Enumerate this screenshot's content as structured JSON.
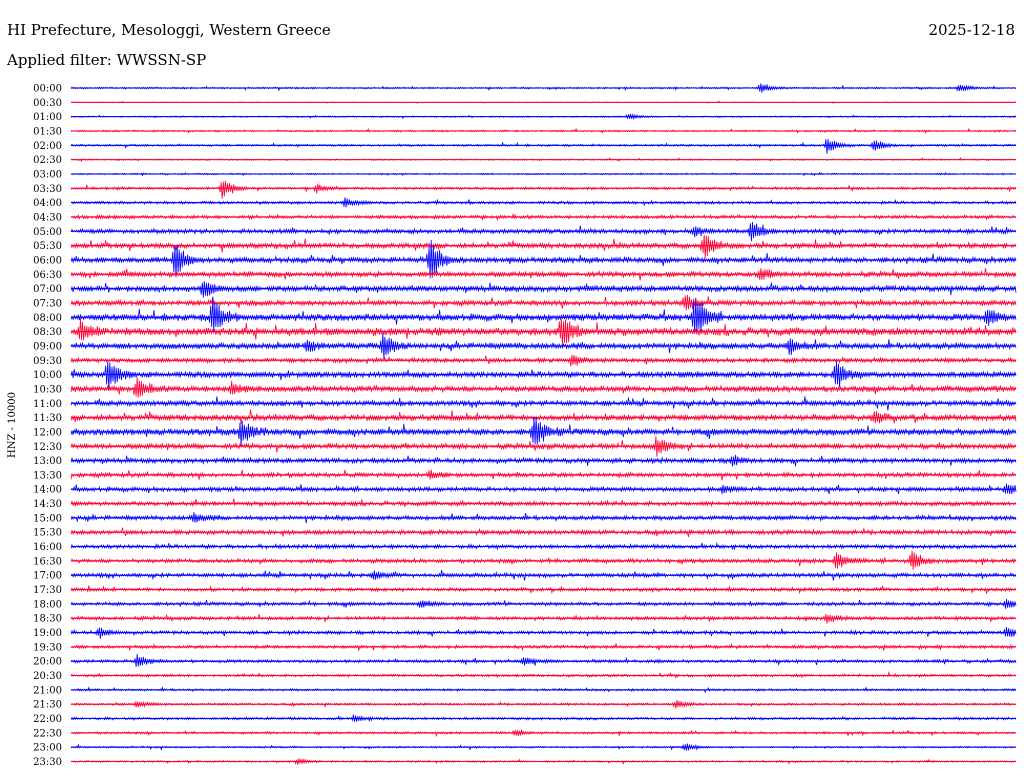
{
  "header": {
    "title": "HI Prefecture, Mesologgi, Western Greece",
    "date": "2025-12-18",
    "filter": "Applied filter: WWSSN-SP"
  },
  "chart_data": {
    "type": "line",
    "ylabel": "HNZ - 10000",
    "colors": [
      "#0000ff",
      "#ff0033"
    ],
    "rows": [
      "00:00",
      "00:30",
      "01:00",
      "01:30",
      "02:00",
      "02:30",
      "03:00",
      "03:30",
      "04:00",
      "04:30",
      "05:00",
      "05:30",
      "06:00",
      "06:30",
      "07:00",
      "07:30",
      "08:00",
      "08:30",
      "09:00",
      "09:30",
      "10:00",
      "10:30",
      "11:00",
      "11:30",
      "12:00",
      "12:30",
      "13:00",
      "13:30",
      "14:00",
      "14:30",
      "15:00",
      "15:30",
      "16:00",
      "16:30",
      "17:00",
      "17:30",
      "18:00",
      "18:30",
      "19:00",
      "19:30",
      "20:00",
      "20:30",
      "21:00",
      "21:30",
      "22:00",
      "22:30",
      "23:00",
      "23:30"
    ],
    "noise_levels": [
      1.0,
      0.5,
      0.8,
      1.0,
      1.2,
      0.8,
      0.9,
      1.5,
      1.6,
      2.0,
      2.5,
      3.0,
      3.2,
      3.0,
      3.5,
      3.0,
      4.0,
      4.5,
      3.5,
      2.5,
      3.5,
      3.5,
      3.0,
      3.5,
      3.8,
      3.0,
      2.8,
      2.5,
      2.5,
      2.5,
      2.5,
      2.5,
      2.3,
      2.3,
      2.3,
      2.0,
      2.0,
      2.0,
      2.0,
      1.8,
      1.8,
      1.5,
      1.3,
      1.3,
      1.5,
      1.3,
      1.0,
      1.0
    ],
    "events": [
      {
        "row": "00:00",
        "t": 0.73,
        "amp": 5
      },
      {
        "row": "00:00",
        "t": 0.94,
        "amp": 4
      },
      {
        "row": "01:00",
        "t": 0.59,
        "amp": 3
      },
      {
        "row": "02:00",
        "t": 0.8,
        "amp": 8
      },
      {
        "row": "02:00",
        "t": 0.85,
        "amp": 6
      },
      {
        "row": "03:30",
        "t": 0.16,
        "amp": 10
      },
      {
        "row": "03:30",
        "t": 0.26,
        "amp": 4
      },
      {
        "row": "04:00",
        "t": 0.29,
        "amp": 5
      },
      {
        "row": "05:00",
        "t": 0.72,
        "amp": 10
      },
      {
        "row": "05:00",
        "t": 0.66,
        "amp": 5
      },
      {
        "row": "05:30",
        "t": 0.67,
        "amp": 14
      },
      {
        "row": "06:00",
        "t": 0.11,
        "amp": 18
      },
      {
        "row": "06:00",
        "t": 0.38,
        "amp": 22
      },
      {
        "row": "06:30",
        "t": 0.73,
        "amp": 6
      },
      {
        "row": "07:00",
        "t": 0.14,
        "amp": 10
      },
      {
        "row": "07:30",
        "t": 0.65,
        "amp": 8
      },
      {
        "row": "08:00",
        "t": 0.15,
        "amp": 20
      },
      {
        "row": "08:00",
        "t": 0.66,
        "amp": 26
      },
      {
        "row": "08:00",
        "t": 0.97,
        "amp": 8
      },
      {
        "row": "08:30",
        "t": 0.01,
        "amp": 10
      },
      {
        "row": "08:30",
        "t": 0.52,
        "amp": 16
      },
      {
        "row": "09:00",
        "t": 0.33,
        "amp": 12
      },
      {
        "row": "09:00",
        "t": 0.76,
        "amp": 8
      },
      {
        "row": "09:00",
        "t": 0.25,
        "amp": 5
      },
      {
        "row": "09:30",
        "t": 0.53,
        "amp": 6
      },
      {
        "row": "10:00",
        "t": 0.04,
        "amp": 15
      },
      {
        "row": "10:00",
        "t": 0.81,
        "amp": 14
      },
      {
        "row": "10:30",
        "t": 0.07,
        "amp": 10
      },
      {
        "row": "10:30",
        "t": 0.17,
        "amp": 6
      },
      {
        "row": "11:30",
        "t": 0.85,
        "amp": 6
      },
      {
        "row": "12:00",
        "t": 0.18,
        "amp": 14
      },
      {
        "row": "12:00",
        "t": 0.49,
        "amp": 18
      },
      {
        "row": "12:30",
        "t": 0.62,
        "amp": 10
      },
      {
        "row": "13:00",
        "t": 0.7,
        "amp": 5
      },
      {
        "row": "13:30",
        "t": 0.38,
        "amp": 4
      },
      {
        "row": "14:00",
        "t": 0.99,
        "amp": 6
      },
      {
        "row": "14:00",
        "t": 0.69,
        "amp": 4
      },
      {
        "row": "15:00",
        "t": 0.13,
        "amp": 5
      },
      {
        "row": "16:30",
        "t": 0.81,
        "amp": 9
      },
      {
        "row": "16:30",
        "t": 0.89,
        "amp": 10
      },
      {
        "row": "17:00",
        "t": 0.32,
        "amp": 4
      },
      {
        "row": "18:00",
        "t": 0.37,
        "amp": 4
      },
      {
        "row": "18:00",
        "t": 0.99,
        "amp": 5
      },
      {
        "row": "18:30",
        "t": 0.8,
        "amp": 4
      },
      {
        "row": "19:00",
        "t": 0.03,
        "amp": 5
      },
      {
        "row": "19:00",
        "t": 0.99,
        "amp": 6
      },
      {
        "row": "20:00",
        "t": 0.07,
        "amp": 7
      },
      {
        "row": "20:00",
        "t": 0.48,
        "amp": 4
      },
      {
        "row": "21:30",
        "t": 0.64,
        "amp": 4
      },
      {
        "row": "21:30",
        "t": 0.07,
        "amp": 3
      },
      {
        "row": "22:00",
        "t": 0.3,
        "amp": 3
      },
      {
        "row": "22:30",
        "t": 0.47,
        "amp": 3
      },
      {
        "row": "23:00",
        "t": 0.65,
        "amp": 4
      },
      {
        "row": "23:30",
        "t": 0.24,
        "amp": 3
      }
    ]
  }
}
